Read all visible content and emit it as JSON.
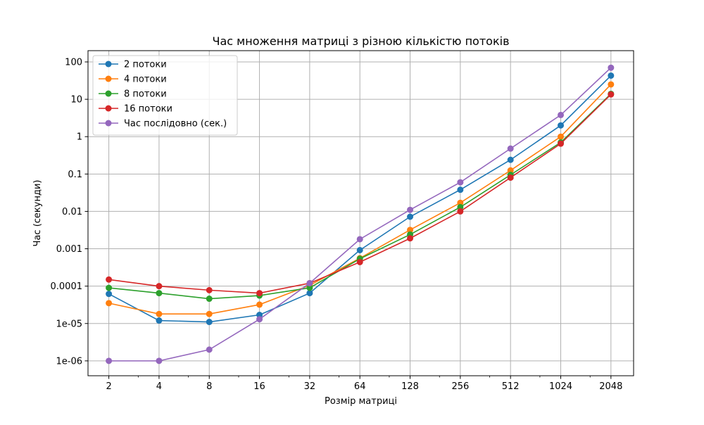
{
  "chart_data": {
    "type": "line",
    "title": "Час множення матриці з різною кількістю потоків",
    "xlabel": "Розмір матриці",
    "ylabel": "Час (секунди)",
    "x_scale": "log2",
    "y_scale": "log10",
    "xlim": [
      1.5,
      2800
    ],
    "ylim": [
      4e-07,
      200
    ],
    "x": [
      2,
      4,
      8,
      16,
      32,
      64,
      128,
      256,
      512,
      1024,
      2048
    ],
    "x_tick_labels": [
      "2",
      "4",
      "8",
      "16",
      "32",
      "64",
      "128",
      "256",
      "512",
      "1024",
      "2048"
    ],
    "y_ticks": [
      1e-06,
      1e-05,
      0.0001,
      0.001,
      0.01,
      0.1,
      1,
      10,
      100
    ],
    "y_tick_labels": [
      "1e-06",
      "1e-05",
      "0.0001",
      "0.001",
      "0.01",
      "0.1",
      "1",
      "10",
      "100"
    ],
    "grid": true,
    "legend_position": "top-left",
    "series": [
      {
        "name": "2 потоки",
        "color": "#1f77b4",
        "values": [
          6.2e-05,
          1.2e-05,
          1.1e-05,
          1.7e-05,
          6.5e-05,
          0.00092,
          0.0072,
          0.038,
          0.24,
          2.0,
          43
        ]
      },
      {
        "name": "4 потоки",
        "color": "#ff7f0e",
        "values": [
          3.5e-05,
          1.8e-05,
          1.8e-05,
          3.2e-05,
          0.000105,
          0.00056,
          0.0032,
          0.017,
          0.125,
          1.0,
          25
        ]
      },
      {
        "name": "8 потоки",
        "color": "#2ca02c",
        "values": [
          9e-05,
          6.5e-05,
          4.6e-05,
          5.6e-05,
          9e-05,
          0.00054,
          0.0024,
          0.013,
          0.095,
          0.7,
          14
        ]
      },
      {
        "name": "16 потоки",
        "color": "#d62728",
        "values": [
          0.00015,
          0.0001,
          7.8e-05,
          6.5e-05,
          0.00012,
          0.00044,
          0.0019,
          0.01,
          0.08,
          0.65,
          13.5
        ]
      },
      {
        "name": "Час послідовно (сек.)",
        "color": "#9467bd",
        "values": [
          1e-06,
          1e-06,
          2e-06,
          1.3e-05,
          0.00012,
          0.0018,
          0.011,
          0.06,
          0.48,
          3.8,
          70
        ]
      }
    ]
  }
}
